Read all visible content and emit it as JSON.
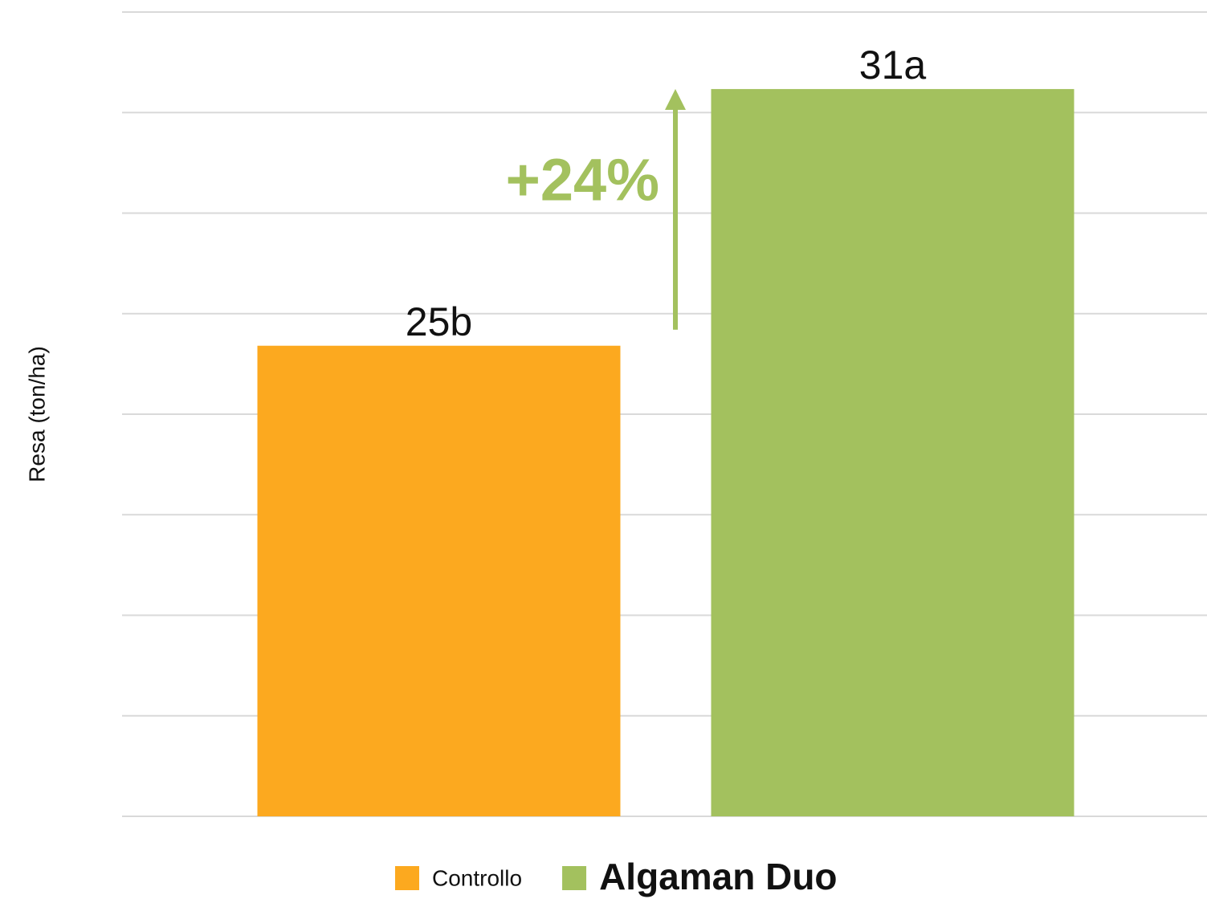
{
  "chart_data": {
    "type": "bar",
    "y_label": "Resa (ton/ha)",
    "categories": [
      "Controllo",
      "Algaman Duo"
    ],
    "values": [
      25,
      31
    ],
    "value_labels": [
      "25b",
      "31a"
    ],
    "colors": [
      "#fca91f",
      "#a3c15e"
    ],
    "annotation": "+24%",
    "annotation_color": "#a3c15e",
    "ylim": [
      14,
      32.8
    ],
    "yticks": [
      14,
      16.35,
      18.7,
      21.05,
      23.4,
      25.75,
      28.1,
      30.45,
      32.8
    ],
    "grid": true,
    "legend": "bottom"
  }
}
